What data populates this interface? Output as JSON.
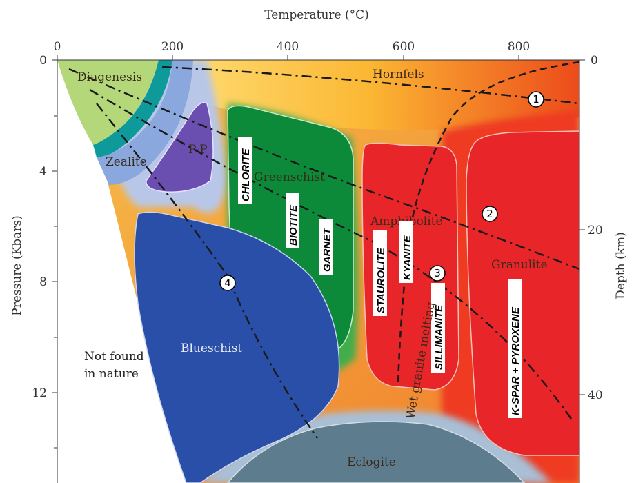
{
  "axes": {
    "top_title": "Temperature (°C)",
    "left_title": "Pressure (Kbars)",
    "right_title": "Depth (km)",
    "temperature_ticks": [
      "0",
      "200",
      "400",
      "600",
      "800"
    ],
    "pressure_ticks": [
      "0",
      "4",
      "8",
      "12"
    ],
    "depth_ticks": [
      "0",
      "20",
      "40"
    ]
  },
  "facies": {
    "diagenesis": "Diagenesis",
    "hornfels": "Hornfels",
    "zealite": "Zealite",
    "pp": "P-P",
    "greenschist": "Greenschist",
    "amphibolite": "Amphibolite",
    "granulite": "Granulite",
    "blueschist": "Blueschist",
    "eclogite": "Eclogite",
    "not_found_1": "Not found",
    "not_found_2": "in nature"
  },
  "minerals": {
    "chlorite": "CHLORITE",
    "biotite": "BIOTITE",
    "garnet": "GARNET",
    "staurolite": "STAUROLITE",
    "kyanite": "KYANITE",
    "sillimanite": "SILLIMANITE",
    "kspar": "K-SPAR + PYROXENE"
  },
  "curve_label": "Wet granite melting",
  "markers": [
    "1",
    "2",
    "3",
    "4"
  ],
  "colors": {
    "diagenesis": "#b4d77a",
    "zealite": "#0e9a9a",
    "pp": "#6a4fb0",
    "greenschist": "#0c8a3a",
    "amphibolite": "#e8262a",
    "granulite": "#e8262a",
    "blueschist": "#2a4fa8",
    "eclogite": "#5d7c8e",
    "hornfels": "#f7a824"
  }
}
